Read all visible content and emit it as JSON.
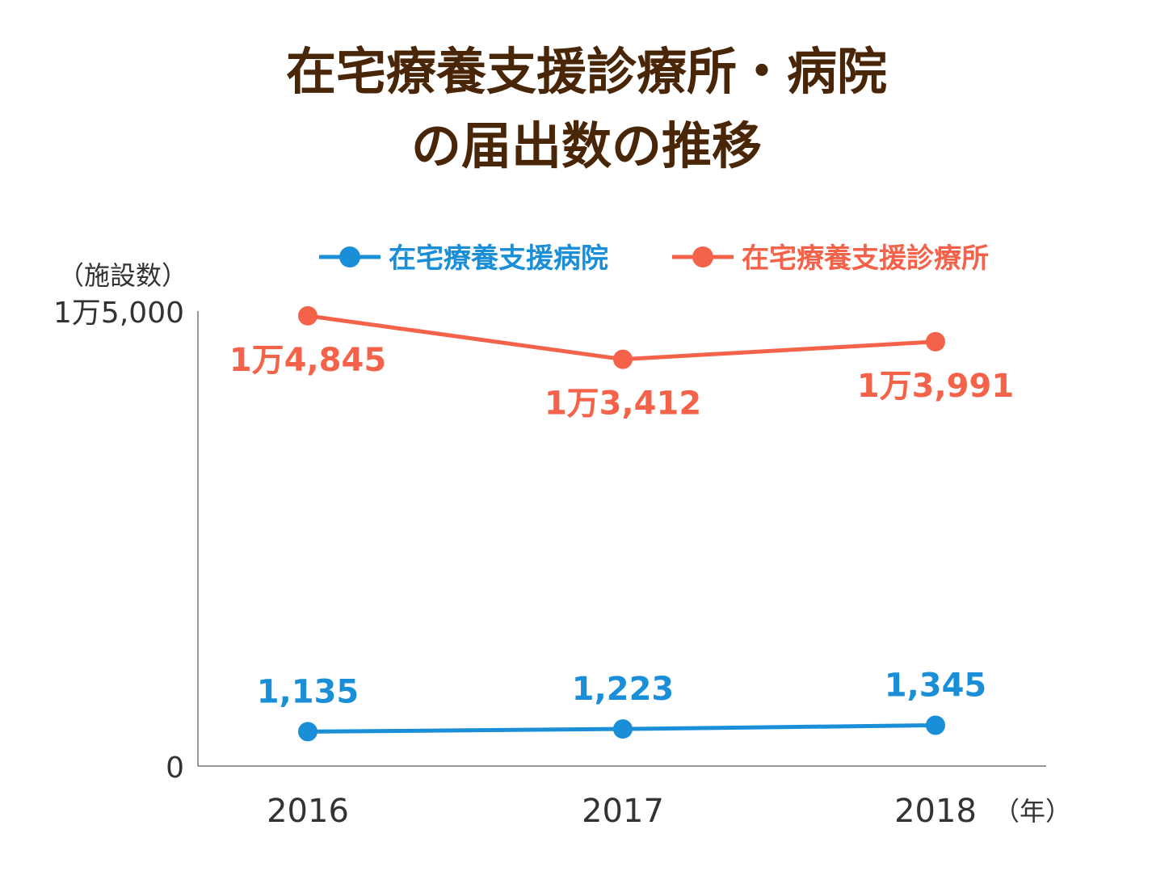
{
  "title_lines": [
    "在宅療養支援診療所・病院",
    "の届出数の推移"
  ],
  "chart_data": {
    "type": "line",
    "title": "在宅療養支援診療所・病院の届出数の推移",
    "ylabel": "（施設数）",
    "xlabel": "（年）",
    "x": [
      "2016",
      "2017",
      "2018"
    ],
    "ylim": [
      0,
      15000
    ],
    "yticks": [
      {
        "value": 0,
        "label": "0"
      },
      {
        "value": 15000,
        "label": "1万5,000"
      }
    ],
    "grid": false,
    "legend_position": "top",
    "series": [
      {
        "name": "在宅療養支援病院",
        "color": "#1a8fd8",
        "values": [
          1135,
          1223,
          1345
        ],
        "labels": [
          "1,135",
          "1,223",
          "1,345"
        ],
        "label_position": "above"
      },
      {
        "name": "在宅療養支援診療所",
        "color": "#f5624a",
        "values": [
          14845,
          13412,
          13991
        ],
        "labels": [
          "1万4,845",
          "1万3,412",
          "1万3,991"
        ],
        "label_position": "below"
      }
    ]
  }
}
